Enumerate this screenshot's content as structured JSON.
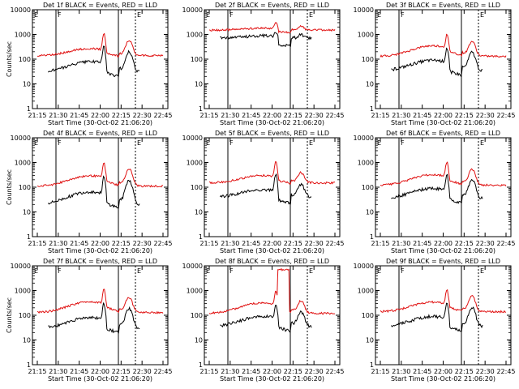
{
  "figure": {
    "footer_ticks": [
      "21:15",
      "21:30",
      "21:45",
      "22:00",
      "22:15",
      "22:30",
      "22:45"
    ]
  },
  "chart_data": [
    {
      "type": "line",
      "title": "Det 1f BLACK = Events, RED = LLD",
      "ylabel": "Counts/sec",
      "xlabel": "Start Time (30-Oct-02 21:06:20)",
      "xticks": [
        "21:15",
        "21:30",
        "21:45",
        "22:00",
        "22:15",
        "22:30",
        "22:45"
      ],
      "yticks": [
        "1",
        "10",
        "100",
        "1000",
        "10000"
      ],
      "ylim": [
        1,
        10000
      ],
      "y_scale": "log",
      "markers": [
        "E",
        "F",
        "E"
      ],
      "red_base": 140,
      "red_amp": 130,
      "black_base": 30,
      "black_amp": 50,
      "spike": [
        850,
        1700
      ]
    },
    {
      "type": "line",
      "title": "Det 2f BLACK = Events, RED = LLD",
      "ylabel": "",
      "xlabel": "Start Time (30-Oct-02 21:06:20)",
      "xticks": [
        "21:15",
        "21:30",
        "21:45",
        "22:00",
        "22:15",
        "22:30",
        "22:45"
      ],
      "yticks": [
        "1",
        "10",
        "100",
        "1000",
        "10000"
      ],
      "ylim": [
        1,
        10000
      ],
      "y_scale": "log",
      "markers": [
        "E",
        "F",
        "E"
      ],
      "red_base": 1500,
      "red_amp": 300,
      "black_base": 700,
      "black_amp": 200,
      "spike": [
        1600,
        2500
      ]
    },
    {
      "type": "line",
      "title": "Det 3f BLACK = Events, RED = LLD",
      "ylabel": "",
      "xlabel": "Start Time (30-Oct-02 21:06:20)",
      "xticks": [
        "21:15",
        "21:30",
        "21:45",
        "22:00",
        "22:15",
        "22:30",
        "22:45"
      ],
      "yticks": [
        "1",
        "10",
        "100",
        "1000",
        "10000"
      ],
      "ylim": [
        1,
        10000
      ],
      "y_scale": "log",
      "markers": [
        "E",
        "F",
        "E"
      ],
      "red_base": 130,
      "red_amp": 220,
      "black_base": 35,
      "black_amp": 55,
      "spike": [
        700,
        1500
      ]
    },
    {
      "type": "line",
      "title": "Det 4f BLACK = Events, RED = LLD",
      "ylabel": "Counts/sec",
      "xlabel": "Start Time (30-Oct-02 21:06:20)",
      "xticks": [
        "21:15",
        "21:30",
        "21:45",
        "22:00",
        "22:15",
        "22:30",
        "22:45"
      ],
      "yticks": [
        "1",
        "10",
        "100",
        "1000",
        "10000"
      ],
      "ylim": [
        1,
        10000
      ],
      "y_scale": "log",
      "markers": [
        "E",
        "F",
        "E"
      ],
      "red_base": 110,
      "red_amp": 180,
      "black_base": 20,
      "black_amp": 45,
      "spike": [
        700,
        1700
      ]
    },
    {
      "type": "line",
      "title": "Det 5f BLACK = Events, RED = LLD",
      "ylabel": "",
      "xlabel": "Start Time (30-Oct-02 21:06:20)",
      "xticks": [
        "21:15",
        "21:30",
        "21:45",
        "22:00",
        "22:15",
        "22:30",
        "22:45"
      ],
      "yticks": [
        "1",
        "10",
        "100",
        "1000",
        "10000"
      ],
      "ylim": [
        1,
        10000
      ],
      "y_scale": "log",
      "markers": [
        "E",
        "F",
        "E"
      ],
      "red_base": 150,
      "red_amp": 150,
      "black_base": 40,
      "black_amp": 40,
      "spike": [
        900,
        900
      ]
    },
    {
      "type": "line",
      "title": "Det 6f BLACK = Events, RED = LLD",
      "ylabel": "",
      "xlabel": "Start Time (30-Oct-02 21:06:20)",
      "xticks": [
        "21:15",
        "21:30",
        "21:45",
        "22:00",
        "22:15",
        "22:30",
        "22:45"
      ],
      "yticks": [
        "1",
        "10",
        "100",
        "1000",
        "10000"
      ],
      "ylim": [
        1,
        10000
      ],
      "y_scale": "log",
      "markers": [
        "E",
        "F",
        "E"
      ],
      "red_base": 120,
      "red_amp": 200,
      "black_base": 35,
      "black_amp": 55,
      "spike": [
        800,
        1600
      ]
    },
    {
      "type": "line",
      "title": "Det 7f BLACK = Events, RED = LLD",
      "ylabel": "Counts/sec",
      "xlabel": "Start Time (30-Oct-02 21:06:20)",
      "xticks": [
        "21:15",
        "21:30",
        "21:45",
        "22:00",
        "22:15",
        "22:30",
        "22:45"
      ],
      "yticks": [
        "1",
        "10",
        "100",
        "1000",
        "10000"
      ],
      "ylim": [
        1,
        10000
      ],
      "y_scale": "log",
      "markers": [
        "E",
        "F",
        "E"
      ],
      "red_base": 130,
      "red_amp": 220,
      "black_base": 30,
      "black_amp": 50,
      "spike": [
        800,
        1500
      ]
    },
    {
      "type": "line",
      "title": "Det 8f BLACK = Events, RED = LLD",
      "ylabel": "",
      "xlabel": "Start Time (30-Oct-02 21:06:20)",
      "xticks": [
        "21:15",
        "21:30",
        "21:45",
        "22:00",
        "22:15",
        "22:30",
        "22:45"
      ],
      "yticks": [
        "1",
        "10",
        "100",
        "1000",
        "10000"
      ],
      "ylim": [
        1,
        10000
      ],
      "y_scale": "log",
      "markers": [
        "E",
        "F",
        "E"
      ],
      "red_base": 120,
      "red_amp": 200,
      "black_base": 35,
      "black_amp": 55,
      "spike": [
        700,
        1000
      ],
      "saturate": [
        7000,
        7000
      ]
    },
    {
      "type": "line",
      "title": "Det 9f BLACK = Events, RED = LLD",
      "ylabel": "",
      "xlabel": "Start Time (30-Oct-02 21:06:20)",
      "xticks": [
        "21:15",
        "21:30",
        "21:45",
        "22:00",
        "22:15",
        "22:30",
        "22:45"
      ],
      "yticks": [
        "1",
        "10",
        "100",
        "1000",
        "10000"
      ],
      "ylim": [
        1,
        10000
      ],
      "y_scale": "log",
      "markers": [
        "E",
        "F",
        "E"
      ],
      "red_base": 140,
      "red_amp": 200,
      "black_base": 35,
      "black_amp": 55,
      "spike": [
        800,
        1700
      ]
    }
  ]
}
